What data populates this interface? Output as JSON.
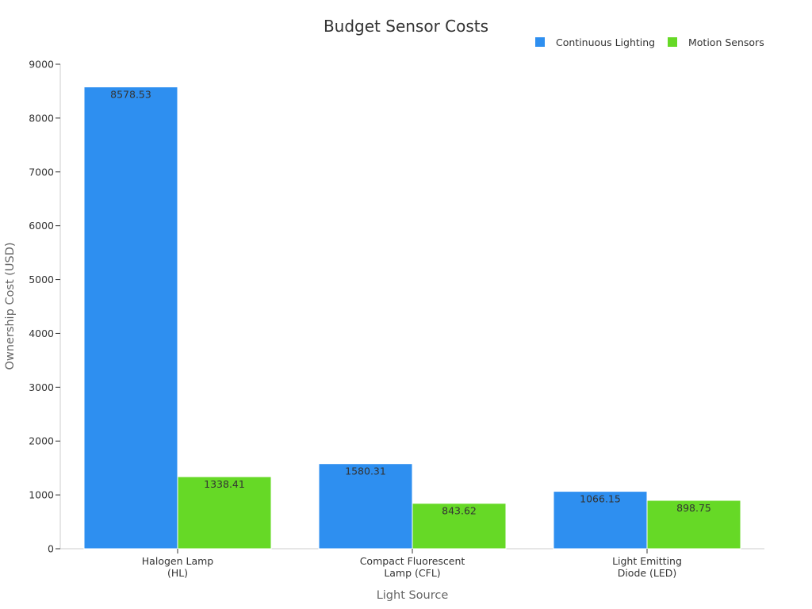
{
  "chart_data": {
    "type": "bar",
    "title": "Budget Sensor Costs",
    "xlabel": "Light Source",
    "ylabel": "Ownership Cost (USD)",
    "categories": [
      [
        "Halogen Lamp",
        "(HL)"
      ],
      [
        "Compact Fluorescent",
        "Lamp (CFL)"
      ],
      [
        "Light Emitting",
        "Diode (LED)"
      ]
    ],
    "series": [
      {
        "name": "Continuous Lighting",
        "color": "#2e8ff0",
        "values": [
          8578.53,
          1580.31,
          1066.15
        ]
      },
      {
        "name": "Motion Sensors",
        "color": "#66d926",
        "values": [
          1338.41,
          843.62,
          898.75
        ]
      }
    ],
    "ylim": [
      0,
      9000
    ],
    "yticks": [
      0,
      1000,
      2000,
      3000,
      4000,
      5000,
      6000,
      7000,
      8000,
      9000
    ],
    "legend_position": "top-right",
    "grid": false
  }
}
